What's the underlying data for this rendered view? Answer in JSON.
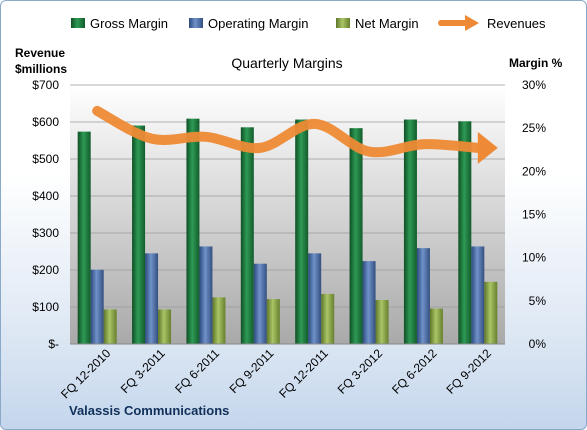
{
  "chart_data": {
    "type": "bar",
    "title": "Quarterly Margins",
    "left_axis_label_line1": "Revenue",
    "left_axis_label_line2": "$millions",
    "right_axis_label": "Margin  %",
    "footer": "Valassis Communications",
    "categories": [
      "FQ 12-2010",
      "FQ 3-2011",
      "FQ 6-2011",
      "FQ 9-2011",
      "FQ 12-2011",
      "FQ 3-2012",
      "FQ 6-2012",
      "FQ 9-2012"
    ],
    "series": [
      {
        "name": "Gross Margin",
        "axis": "right",
        "color": "#1e7b3e",
        "values": [
          24.6,
          25.3,
          26.1,
          25.1,
          26.0,
          25.0,
          26.0,
          25.8
        ]
      },
      {
        "name": "Operating Margin",
        "axis": "right",
        "color": "#4a6ea8",
        "values": [
          8.6,
          10.5,
          11.3,
          9.3,
          10.5,
          9.6,
          11.1,
          11.3
        ]
      },
      {
        "name": "Net Margin",
        "axis": "right",
        "color": "#8aa64a",
        "values": [
          4.0,
          4.0,
          5.4,
          5.2,
          5.8,
          5.1,
          4.1,
          7.2
        ]
      },
      {
        "name": "Revenues",
        "axis": "left",
        "type": "line",
        "color": "#ee8a35",
        "values": [
          630,
          555,
          560,
          530,
          595,
          520,
          540,
          530
        ]
      }
    ],
    "left_axis": {
      "min": 0,
      "max": 700,
      "step": 100,
      "ticks": [
        "$-",
        "$100",
        "$200",
        "$300",
        "$400",
        "$500",
        "$600",
        "$700"
      ]
    },
    "right_axis": {
      "min": 0,
      "max": 30,
      "step": 5,
      "ticks": [
        "0%",
        "5%",
        "10%",
        "15%",
        "20%",
        "25%",
        "30%"
      ]
    },
    "legend_position": "top",
    "grid": true
  }
}
